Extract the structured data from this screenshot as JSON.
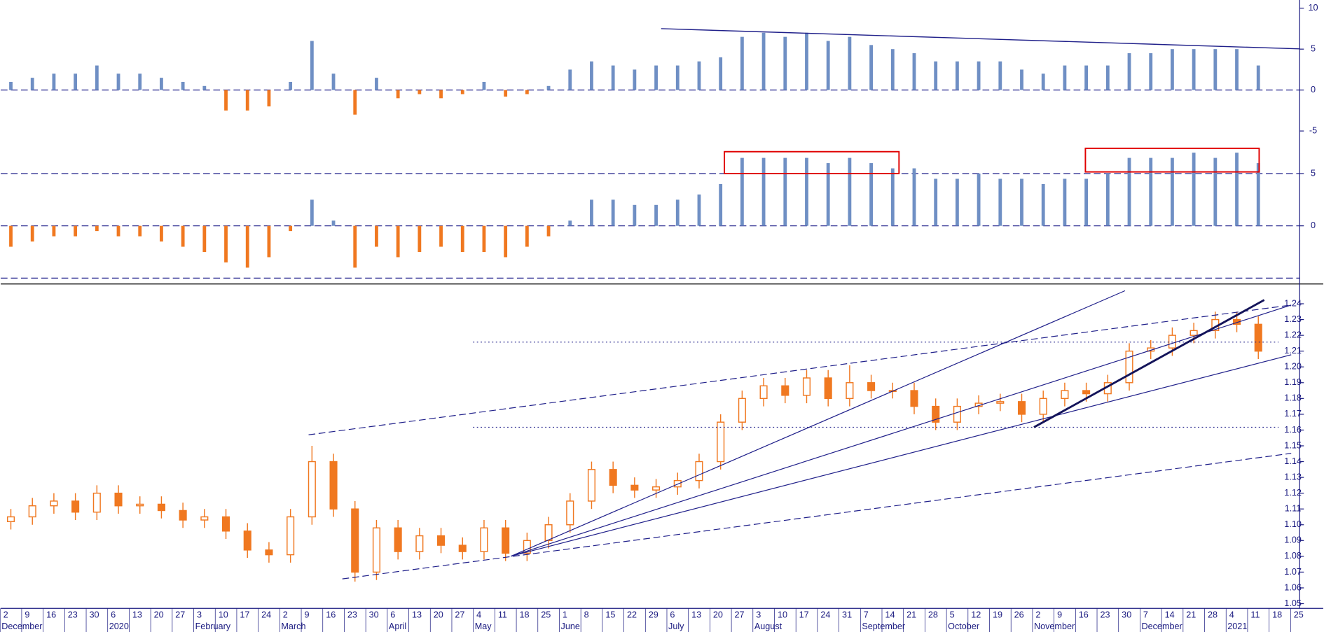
{
  "x_axis": {
    "categories": [
      "2",
      "9",
      "16",
      "23",
      "30",
      "6",
      "13",
      "20",
      "27",
      "3",
      "10",
      "17",
      "24",
      "2",
      "9",
      "16",
      "23",
      "30",
      "6",
      "13",
      "20",
      "27",
      "4",
      "11",
      "18",
      "25",
      "1",
      "8",
      "15",
      "22",
      "29",
      "6",
      "13",
      "20",
      "27",
      "3",
      "10",
      "17",
      "24",
      "31",
      "7",
      "14",
      "21",
      "28",
      "5",
      "12",
      "19",
      "26",
      "2",
      "9",
      "16",
      "23",
      "30",
      "7",
      "14",
      "21",
      "28",
      "4",
      "11",
      "18",
      "25"
    ],
    "months": [
      "December",
      null,
      null,
      null,
      null,
      "2020",
      null,
      null,
      null,
      "February",
      null,
      null,
      null,
      "March",
      null,
      null,
      null,
      null,
      "April",
      null,
      null,
      null,
      "May",
      null,
      null,
      null,
      "June",
      null,
      null,
      null,
      null,
      "July",
      null,
      null,
      null,
      "August",
      null,
      null,
      null,
      null,
      "September",
      null,
      null,
      null,
      "October",
      null,
      null,
      null,
      "November",
      null,
      null,
      null,
      null,
      "December",
      null,
      null,
      null,
      "2021",
      null,
      null,
      null
    ]
  },
  "chart_data": [
    {
      "type": "bar",
      "ylim": [
        -6.5,
        11
      ],
      "yticks": [
        10,
        5,
        0,
        -5
      ],
      "hlines": [
        0
      ],
      "color_positive": "#6f8fc4",
      "color_negative": "#f07820",
      "values": [
        1,
        1.5,
        2,
        2,
        3,
        2,
        2,
        1.5,
        1,
        0.5,
        -2.5,
        -2.5,
        -2,
        1,
        6,
        2,
        -3,
        1.5,
        -1,
        -0.5,
        -1,
        -0.5,
        1,
        -0.8,
        -0.5,
        0.5,
        2.5,
        3.5,
        3,
        2.5,
        3,
        3,
        3.5,
        4,
        6.5,
        7,
        6.5,
        7,
        6,
        6.5,
        5.5,
        5,
        4.5,
        3.5,
        3.5,
        3.5,
        3.5,
        2.5,
        2,
        3,
        3,
        3,
        4.5,
        4.5,
        5,
        5,
        5,
        5,
        3,
        null,
        null
      ]
    },
    {
      "type": "bar",
      "ylim": [
        -5.24,
        7.9
      ],
      "yticks": [
        5,
        0
      ],
      "hlines": [
        5,
        0,
        -5
      ],
      "color_positive": "#6f8fc4",
      "color_negative": "#f07820",
      "values": [
        -2,
        -1.5,
        -1,
        -1,
        -0.5,
        -1,
        -1,
        -1.5,
        -2,
        -2.5,
        -3.5,
        -4,
        -3,
        -0.5,
        2.5,
        0.5,
        -4,
        -2,
        -3,
        -2.5,
        -2,
        -2.5,
        -2.5,
        -3,
        -2,
        -1,
        0.5,
        2.5,
        2.5,
        2,
        2,
        2.5,
        3,
        4,
        6.5,
        6.5,
        6.5,
        6.5,
        6,
        6.5,
        6,
        5.5,
        5.5,
        4.5,
        4.5,
        5,
        4.5,
        4.5,
        4,
        4.5,
        4.5,
        5,
        6.5,
        6.5,
        6.5,
        7,
        6.5,
        7,
        6,
        null,
        null
      ]
    },
    {
      "type": "candlestick",
      "ylim": [
        1.047,
        1.252
      ],
      "yticks": [
        1.05,
        1.06,
        1.07,
        1.08,
        1.09,
        {
          "value": 1.1,
          "label": "1.10"
        },
        1.11,
        1.12,
        1.13,
        1.14,
        1.15,
        1.16,
        1.17,
        1.18,
        1.19,
        {
          "value": 1.2,
          "label": "1.20"
        },
        1.21,
        1.22,
        1.23,
        1.24
      ],
      "color": "#f07820",
      "open": [
        1.102,
        1.105,
        1.112,
        1.115,
        1.108,
        1.12,
        1.112,
        1.113,
        1.109,
        1.103,
        1.105,
        1.096,
        1.084,
        1.081,
        1.105,
        1.14,
        1.11,
        1.07,
        1.098,
        1.083,
        1.093,
        1.087,
        1.083,
        1.098,
        1.082,
        1.09,
        1.1,
        1.115,
        1.135,
        1.125,
        1.122,
        1.124,
        1.128,
        1.14,
        1.165,
        1.18,
        1.188,
        1.182,
        1.193,
        1.18,
        1.19,
        1.185,
        1.185,
        1.175,
        1.165,
        1.175,
        1.177,
        1.178,
        1.17,
        1.18,
        1.185,
        1.183,
        1.19,
        1.21,
        1.212,
        1.22,
        1.223,
        1.23,
        1.227,
        null,
        null
      ],
      "high": [
        1.11,
        1.117,
        1.12,
        1.12,
        1.125,
        1.125,
        1.118,
        1.118,
        1.114,
        1.11,
        1.11,
        1.101,
        1.089,
        1.11,
        1.15,
        1.145,
        1.115,
        1.103,
        1.103,
        1.098,
        1.098,
        1.092,
        1.103,
        1.103,
        1.095,
        1.105,
        1.12,
        1.14,
        1.14,
        1.13,
        1.129,
        1.133,
        1.145,
        1.17,
        1.185,
        1.193,
        1.193,
        1.198,
        1.198,
        1.201,
        1.195,
        1.19,
        1.19,
        1.18,
        1.18,
        1.182,
        1.183,
        1.183,
        1.185,
        1.19,
        1.19,
        1.195,
        1.215,
        1.217,
        1.225,
        1.228,
        1.235,
        1.235,
        1.232,
        null,
        null
      ],
      "low": [
        1.097,
        1.1,
        1.107,
        1.103,
        1.103,
        1.107,
        1.107,
        1.104,
        1.098,
        1.098,
        1.091,
        1.079,
        1.076,
        1.076,
        1.1,
        1.105,
        1.064,
        1.065,
        1.078,
        1.078,
        1.082,
        1.078,
        1.078,
        1.077,
        1.077,
        1.085,
        1.095,
        1.11,
        1.12,
        1.117,
        1.117,
        1.119,
        1.123,
        1.135,
        1.16,
        1.175,
        1.177,
        1.177,
        1.175,
        1.175,
        1.18,
        1.18,
        1.17,
        1.16,
        1.16,
        1.17,
        1.172,
        1.165,
        1.165,
        1.175,
        1.178,
        1.178,
        1.185,
        1.205,
        1.207,
        1.215,
        1.218,
        1.222,
        1.205,
        null,
        null
      ],
      "close": [
        1.105,
        1.112,
        1.115,
        1.108,
        1.12,
        1.112,
        1.113,
        1.109,
        1.103,
        1.105,
        1.096,
        1.084,
        1.081,
        1.105,
        1.14,
        1.11,
        1.07,
        1.098,
        1.083,
        1.093,
        1.087,
        1.083,
        1.098,
        1.082,
        1.09,
        1.1,
        1.115,
        1.135,
        1.125,
        1.122,
        1.124,
        1.128,
        1.14,
        1.165,
        1.18,
        1.188,
        1.182,
        1.193,
        1.18,
        1.19,
        1.185,
        1.185,
        1.175,
        1.165,
        1.175,
        1.177,
        1.178,
        1.17,
        1.18,
        1.185,
        1.183,
        1.19,
        1.21,
        1.212,
        1.22,
        1.223,
        1.23,
        1.227,
        1.21,
        null,
        null
      ]
    }
  ]
}
